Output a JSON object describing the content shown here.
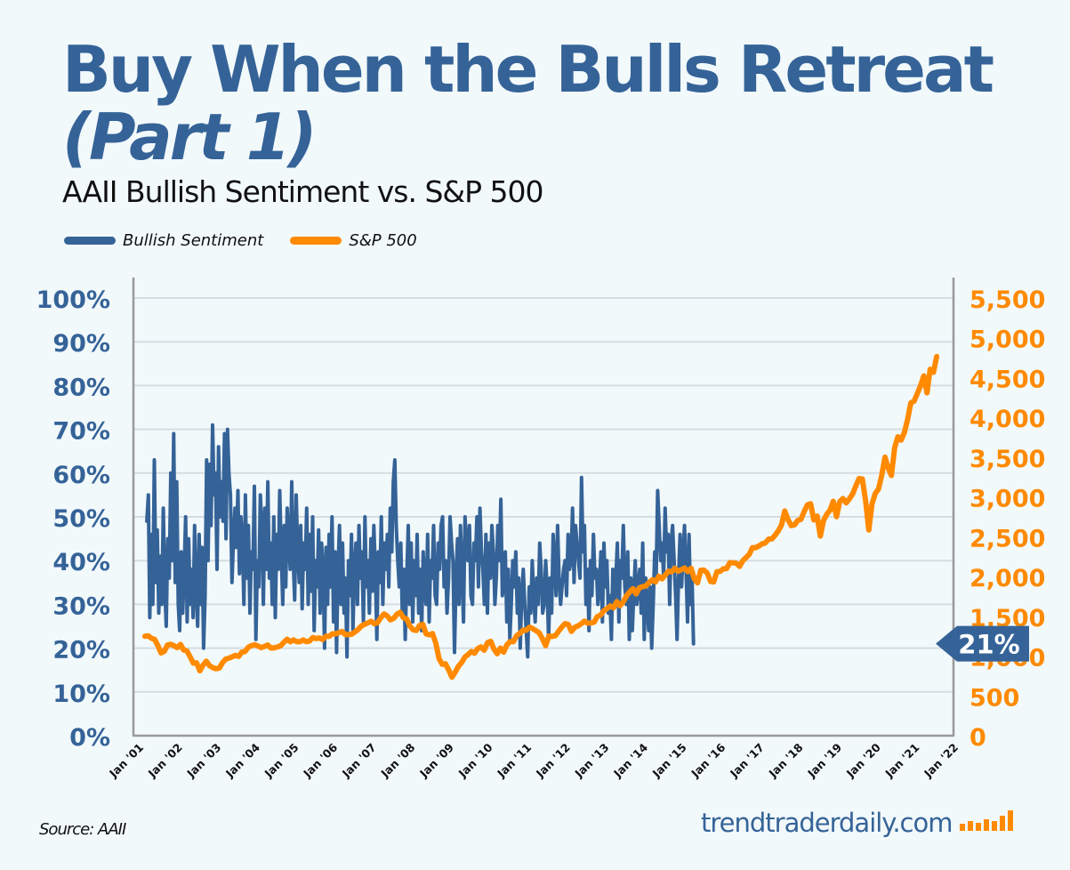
{
  "header": {
    "title_line1": "Buy When the Bulls Retreat",
    "title_line2": "(Part 1)",
    "subtitle": "AAII Bullish Sentiment vs. S&P 500"
  },
  "colors": {
    "sentiment": "#356398",
    "sp500": "#ff8a00",
    "background": "#f2f9fb",
    "grid": "#d5dde2",
    "axis": "#999999"
  },
  "footer": {
    "source": "Source: AAII",
    "brand": "trendtraderdaily.com"
  },
  "callout": {
    "label": "21%",
    "value": 21
  },
  "chart_data": {
    "type": "line",
    "title": "AAII Bullish Sentiment vs. S&P 500",
    "legend": [
      "Bullish Sentiment",
      "S&P 500"
    ],
    "legend_position": "top-left",
    "grid": true,
    "x_tick_labels": [
      "Jan '01",
      "Jan '02",
      "Jan '03",
      "Jan '04",
      "Jan '05",
      "Jan '06",
      "Jan '07",
      "Jan '08",
      "Jan '09",
      "Jan '10",
      "Jan '11",
      "Jan '12",
      "Jan '13",
      "Jan '14",
      "Jan '15",
      "Jan '16",
      "Jan '17",
      "Jan '18",
      "Jan '19",
      "Jan '20",
      "Jan '21",
      "Jan '22"
    ],
    "x_range": [
      2001.0,
      2022.0
    ],
    "y_left": {
      "label": "Bullish Sentiment",
      "range": [
        0,
        100
      ],
      "ticks": [
        "0%",
        "10%",
        "20%",
        "30%",
        "40%",
        "50%",
        "60%",
        "70%",
        "80%",
        "90%",
        "100%"
      ]
    },
    "y_right": {
      "label": "S&P 500",
      "range": [
        0,
        5500
      ],
      "ticks": [
        "0",
        "500",
        "1,000",
        "1,500",
        "2,000",
        "2,500",
        "3,000",
        "3,500",
        "4,000",
        "4,500",
        "5,000",
        "5,500"
      ]
    },
    "series": [
      {
        "name": "Bullish Sentiment",
        "axis": "left",
        "x_start": 2001.3,
        "x_step": 0.0385,
        "values": [
          49,
          55,
          27,
          46,
          30,
          63,
          35,
          47,
          28,
          41,
          30,
          52,
          34,
          25,
          45,
          36,
          60,
          40,
          69,
          35,
          58,
          30,
          24,
          42,
          28,
          38,
          50,
          26,
          45,
          30,
          38,
          27,
          48,
          33,
          25,
          46,
          30,
          43,
          20,
          32,
          63,
          40,
          62,
          48,
          71,
          55,
          60,
          38,
          66,
          50,
          58,
          49,
          69,
          45,
          70,
          60,
          55,
          35,
          45,
          52,
          43,
          56,
          37,
          50,
          44,
          30,
          55,
          36,
          48,
          28,
          42,
          38,
          57,
          22,
          40,
          34,
          55,
          48,
          30,
          52,
          38,
          58,
          36,
          44,
          30,
          50,
          27,
          46,
          38,
          56,
          42,
          30,
          48,
          34,
          52,
          45,
          38,
          58,
          40,
          31,
          55,
          42,
          35,
          48,
          29,
          44,
          38,
          52,
          30,
          46,
          33,
          50,
          24,
          40,
          34,
          47,
          28,
          44,
          38,
          20,
          43,
          30,
          46,
          34,
          50,
          26,
          42,
          19,
          38,
          48,
          30,
          44,
          28,
          36,
          18,
          40,
          32,
          46,
          24,
          38,
          44,
          30,
          48,
          36,
          42,
          26,
          50,
          34,
          40,
          28,
          45,
          33,
          48,
          38,
          22,
          42,
          35,
          50,
          30,
          44,
          38,
          46,
          34,
          52,
          42,
          58,
          63,
          48,
          40,
          34,
          44,
          28,
          38,
          22,
          36,
          48,
          30,
          44,
          26,
          40,
          32,
          46,
          28,
          38,
          24,
          42,
          34,
          30,
          46,
          26,
          40,
          36,
          48,
          32,
          30,
          44,
          38,
          48,
          50,
          34,
          40,
          28,
          36,
          50,
          44,
          40,
          19,
          36,
          45,
          30,
          48,
          38,
          26,
          50,
          44,
          40,
          48,
          32,
          30,
          44,
          40,
          50,
          34,
          52,
          42,
          38,
          30,
          46,
          28,
          44,
          36,
          48,
          42,
          30,
          36,
          48,
          40,
          54,
          32,
          36,
          42,
          26,
          38,
          22,
          30,
          40,
          34,
          42,
          28,
          36,
          20,
          32,
          38,
          30,
          24,
          18,
          34,
          28,
          40,
          32,
          26,
          36,
          30,
          44,
          38,
          28,
          30,
          40,
          34,
          22,
          36,
          28,
          46,
          40,
          32,
          48,
          36,
          30,
          34,
          38,
          40,
          32,
          46,
          38,
          40,
          52,
          35,
          48,
          44,
          40,
          36,
          59,
          42,
          48,
          30,
          38,
          24,
          40,
          32,
          46,
          36,
          38,
          30,
          34,
          42,
          26,
          44,
          34,
          40,
          28,
          32,
          22,
          38,
          30,
          36,
          44,
          26,
          40,
          36,
          48,
          34,
          30,
          42,
          22,
          36,
          24,
          32,
          40,
          30,
          34,
          38,
          28,
          44,
          22,
          36,
          30,
          24,
          34,
          20,
          30,
          42,
          36,
          56,
          48,
          40,
          44,
          36,
          52,
          42,
          46,
          30,
          44,
          48,
          40,
          32,
          22,
          36,
          46,
          34,
          42,
          48,
          38,
          26,
          46,
          30,
          37,
          21
        ]
      },
      {
        "name": "S&P 500",
        "axis": "right",
        "x_start": 2001.25,
        "x_step": 0.0833,
        "values": [
          1249,
          1255,
          1224,
          1211,
          1133,
          1040,
          1059,
          1139,
          1148,
          1130,
          1106,
          1147,
          1076,
          1067,
          989,
          911,
          916,
          815,
          885,
          936,
          880,
          855,
          841,
          848,
          916,
          963,
          974,
          990,
          1008,
          996,
          1050,
          1058,
          1111,
          1131,
          1144,
          1126,
          1107,
          1121,
          1140,
          1101,
          1104,
          1114,
          1130,
          1173,
          1212,
          1181,
          1204,
          1181,
          1180,
          1203,
          1181,
          1191,
          1234,
          1220,
          1228,
          1207,
          1249,
          1248,
          1280,
          1280,
          1294,
          1310,
          1270,
          1270,
          1276,
          1303,
          1336,
          1378,
          1400,
          1418,
          1438,
          1406,
          1420,
          1482,
          1530,
          1503,
          1455,
          1474,
          1527,
          1549,
          1481,
          1468,
          1378,
          1330,
          1322,
          1385,
          1400,
          1280,
          1267,
          1283,
          1165,
          969,
          896,
          903,
          825,
          735,
          797,
          872,
          919,
          987,
          1020,
          1057,
          1036,
          1095,
          1116,
          1073,
          1169,
          1186,
          1089,
          1030,
          1101,
          1049,
          1141,
          1183,
          1180,
          1257,
          1286,
          1327,
          1325,
          1364,
          1345,
          1320,
          1292,
          1218,
          1131,
          1253,
          1247,
          1257,
          1312,
          1365,
          1408,
          1398,
          1310,
          1362,
          1379,
          1406,
          1440,
          1412,
          1416,
          1426,
          1498,
          1514,
          1569,
          1597,
          1630,
          1606,
          1685,
          1632,
          1681,
          1756,
          1805,
          1848,
          1782,
          1859,
          1872,
          1883,
          1924,
          1960,
          1931,
          2003,
          1972,
          2018,
          2067,
          2059,
          2104,
          2067,
          2086,
          2107,
          2063,
          2104,
          1972,
          1920,
          2079,
          2080,
          2044,
          1940,
          1932,
          2060,
          2065,
          2097,
          2099,
          2174,
          2171,
          2168,
          2126,
          2199,
          2238,
          2279,
          2363,
          2362,
          2384,
          2411,
          2423,
          2470,
          2472,
          2519,
          2575,
          2648,
          2824,
          2714,
          2641,
          2648,
          2705,
          2718,
          2816,
          2901,
          2914,
          2711,
          2760,
          2507,
          2704,
          2784,
          2834,
          2946,
          2752,
          2941,
          2980,
          2926,
          2977,
          3038,
          3141,
          3231,
          3225,
          2954,
          2585,
          2912,
          3044,
          3100,
          3271,
          3500,
          3363,
          3270,
          3622,
          3756,
          3714,
          3811,
          3973,
          4181,
          4204,
          4297,
          4395,
          4522,
          4308,
          4605,
          4567,
          4766
        ]
      }
    ]
  }
}
